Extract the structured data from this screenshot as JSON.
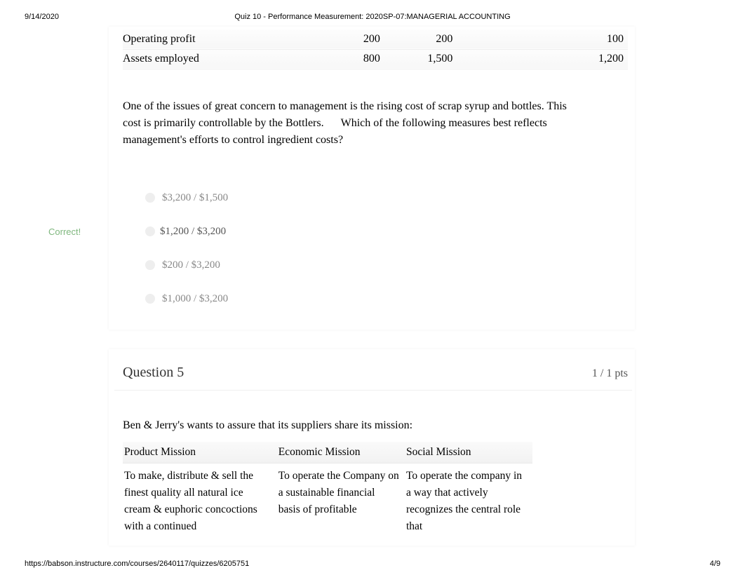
{
  "header": {
    "date": "9/14/2020",
    "title": "Quiz 10 - Performance Measurement: 2020SP-07:MANAGERIAL ACCOUNTING"
  },
  "footer": {
    "url": "https://babson.instructure.com/courses/2640117/quizzes/6205751",
    "page": "4/9"
  },
  "colors": {
    "page_bg": "#ffffff",
    "text": "#000000",
    "muted": "#888888",
    "correct_green": "#7fb77e",
    "band_gradient_top": "#fdfdfd",
    "band_gradient_bottom": "#f7f7f7",
    "divider": "#f0f0f0"
  },
  "q4": {
    "table": {
      "rows": [
        {
          "label": "Operating profit",
          "c1": "200",
          "c2": "200",
          "c3": "100"
        },
        {
          "label": "Assets employed",
          "c1": "800",
          "c2": "1,500",
          "c3": "1,200"
        }
      ]
    },
    "stem": "One of the issues of great concern to management is the rising cost of scrap syrup and bottles. This cost is primarily controllable by the Bottlers.      Which of the following measures best reflects management's efforts to control ingredient costs?",
    "answers": {
      "correct_index": 1,
      "correct_label": "Correct!",
      "options": [
        "$3,200 / $1,500",
        "$1,200 / $3,200",
        "$200 / $3,200",
        "$1,000 / $3,200"
      ]
    }
  },
  "q5": {
    "title": "Question 5",
    "points": "1 / 1 pts",
    "stem": "Ben & Jerry's wants to assure that its suppliers share its mission:",
    "mission": {
      "headers": [
        "Product Mission",
        "Economic Mission",
        "Social Mission"
      ],
      "bodies": [
        "To make, distribute & sell the finest quality all natural ice cream & euphoric concoctions with a continued",
        "To operate the Company on a sustainable financial basis of profitable",
        "To operate the company in a way that actively recognizes the central role that"
      ]
    }
  }
}
